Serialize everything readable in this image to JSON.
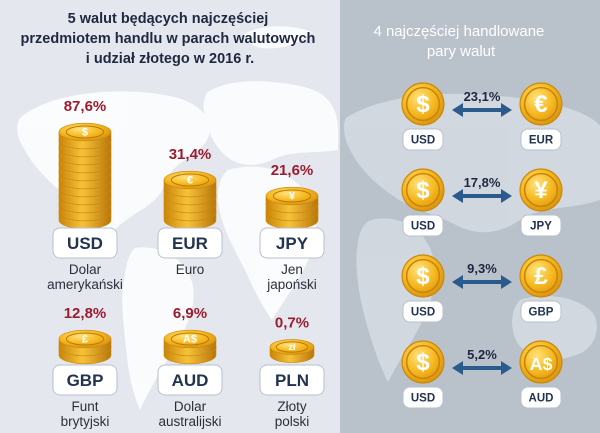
{
  "colors": {
    "left_background": "#e4e8ee",
    "right_background": "#b9c1cb",
    "percent": "#9b1b30",
    "code": "#22334f",
    "label": "#2a2f3a",
    "heading_left": "#1f2840",
    "heading_right": "#ffffff",
    "coin_face": "#f3b51d",
    "coin_edge": "#c9890a",
    "code_box": "#ffffff",
    "arrow": "#2b5a8c"
  },
  "chart_data": [
    {
      "type": "bar",
      "title": "5 walut będących najczęściej przedmiotem handlu w parach walutowych i udział złotego w 2016 r.",
      "title_lines": [
        "5 walut będących najczęściej",
        "przedmiotem handlu w parach walutowych",
        "i udział złotego w 2016 r."
      ],
      "unit": "%",
      "categories": [
        "USD",
        "EUR",
        "JPY",
        "GBP",
        "AUD",
        "PLN"
      ],
      "items": [
        {
          "code": "USD",
          "value": 87.6,
          "value_label": "87,6%",
          "name_lines": [
            "Dolar",
            "amerykański"
          ],
          "icon": "dollar-coin-icon",
          "symbol": "$"
        },
        {
          "code": "EUR",
          "value": 31.4,
          "value_label": "31,4%",
          "name_lines": [
            "Euro"
          ],
          "icon": "euro-coin-icon",
          "symbol": "€"
        },
        {
          "code": "JPY",
          "value": 21.6,
          "value_label": "21,6%",
          "name_lines": [
            "Jen",
            "japoński"
          ],
          "icon": "yen-coin-icon",
          "symbol": "¥"
        },
        {
          "code": "GBP",
          "value": 12.8,
          "value_label": "12,8%",
          "name_lines": [
            "Funt",
            "brytyjski"
          ],
          "icon": "pound-coin-icon",
          "symbol": "£"
        },
        {
          "code": "AUD",
          "value": 6.9,
          "value_label": "6,9%",
          "name_lines": [
            "Dolar",
            "australijski"
          ],
          "icon": "australian-dollar-coin-icon",
          "symbol": "A$"
        },
        {
          "code": "PLN",
          "value": 0.7,
          "value_label": "0,7%",
          "name_lines": [
            "Złoty",
            "polski"
          ],
          "icon": "zloty-coin-icon",
          "symbol": "zł"
        }
      ]
    },
    {
      "type": "bar",
      "title": "4 najczęściej handlowane pary walut",
      "title_lines": [
        "4 najczęściej handlowane",
        "pary walut"
      ],
      "unit": "%",
      "categories": [
        "USD/EUR",
        "USD/JPY",
        "USD/GBP",
        "USD/AUD"
      ],
      "pairs": [
        {
          "base": "USD",
          "base_symbol": "$",
          "quote": "EUR",
          "quote_symbol": "€",
          "value": 23.1,
          "value_label": "23,1%",
          "quote_icon": "euro-coin-icon"
        },
        {
          "base": "USD",
          "base_symbol": "$",
          "quote": "JPY",
          "quote_symbol": "¥",
          "value": 17.8,
          "value_label": "17,8%",
          "quote_icon": "yen-coin-icon"
        },
        {
          "base": "USD",
          "base_symbol": "$",
          "quote": "GBP",
          "quote_symbol": "£",
          "value": 9.3,
          "value_label": "9,3%",
          "quote_icon": "pound-coin-icon"
        },
        {
          "base": "USD",
          "base_symbol": "$",
          "quote": "AUD",
          "quote_symbol": "A$",
          "value": 5.2,
          "value_label": "5,2%",
          "quote_icon": "australian-dollar-coin-icon"
        }
      ]
    }
  ]
}
